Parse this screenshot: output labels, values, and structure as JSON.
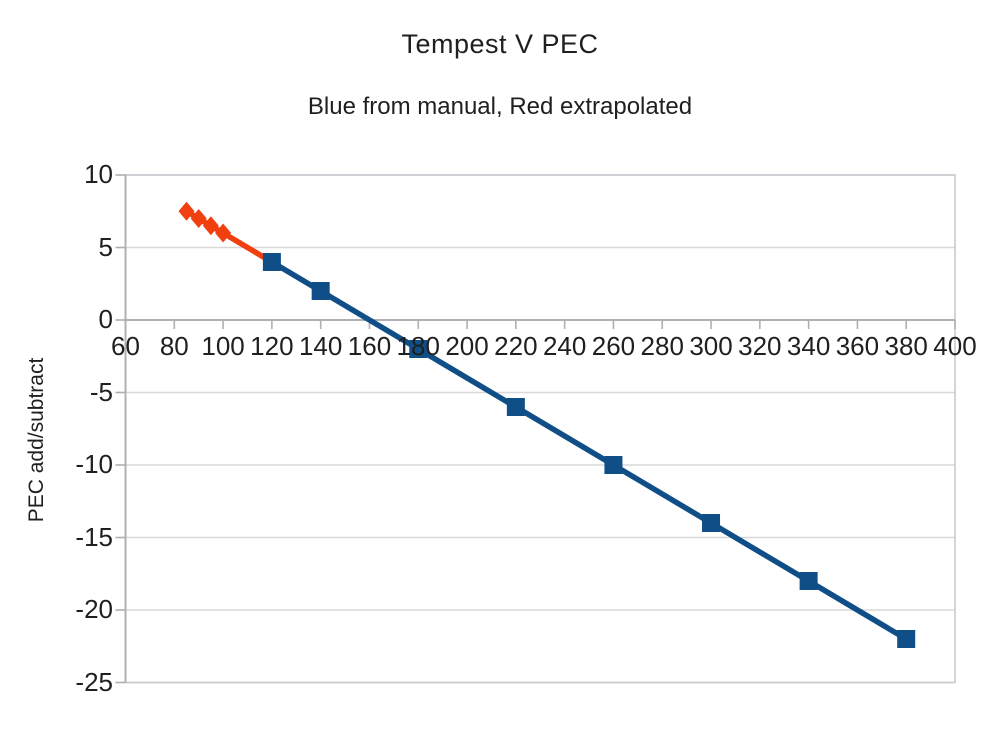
{
  "chart_data": {
    "type": "line",
    "title": "Tempest V PEC",
    "subtitle": "Blue from manual, Red extrapolated",
    "xlabel": "",
    "ylabel": "PEC add/subtract",
    "xlim": [
      60,
      400
    ],
    "ylim": [
      -25,
      10
    ],
    "x_ticks": [
      60,
      80,
      100,
      120,
      140,
      160,
      180,
      200,
      220,
      240,
      260,
      280,
      300,
      320,
      340,
      360,
      380,
      400
    ],
    "y_ticks": [
      10,
      5,
      0,
      -5,
      -10,
      -15,
      -20,
      -25
    ],
    "grid": "horizontal-only",
    "legend": "none",
    "x_axis_position": "zero-line",
    "series": [
      {
        "name": "Red extrapolated",
        "color": "#f23f10",
        "marker": "diamond",
        "marker_points": [
          [
            85,
            7.5
          ],
          [
            90,
            7
          ],
          [
            95,
            6.5
          ],
          [
            100,
            6
          ]
        ],
        "line_points": [
          [
            85,
            7.5
          ],
          [
            90,
            7
          ],
          [
            95,
            6.5
          ],
          [
            100,
            6
          ],
          [
            120,
            4
          ]
        ]
      },
      {
        "name": "Blue from manual",
        "color": "#0f4e86",
        "marker": "square",
        "marker_points": [
          [
            120,
            4
          ],
          [
            140,
            2
          ],
          [
            180,
            -2
          ],
          [
            220,
            -6
          ],
          [
            260,
            -10
          ],
          [
            300,
            -14
          ],
          [
            340,
            -18
          ],
          [
            380,
            -22
          ]
        ],
        "line_points": [
          [
            120,
            4
          ],
          [
            140,
            2
          ],
          [
            180,
            -2
          ],
          [
            220,
            -6
          ],
          [
            260,
            -10
          ],
          [
            300,
            -14
          ],
          [
            340,
            -18
          ],
          [
            380,
            -22
          ]
        ]
      }
    ],
    "colors": {
      "background": "#ffffff",
      "gridline": "#d8d8d8",
      "axis_line": "#afafb6",
      "border": "#c9c9d0",
      "text": "#1f1f1f",
      "series_blue": "#0f4e86",
      "series_red": "#f23f10"
    }
  }
}
